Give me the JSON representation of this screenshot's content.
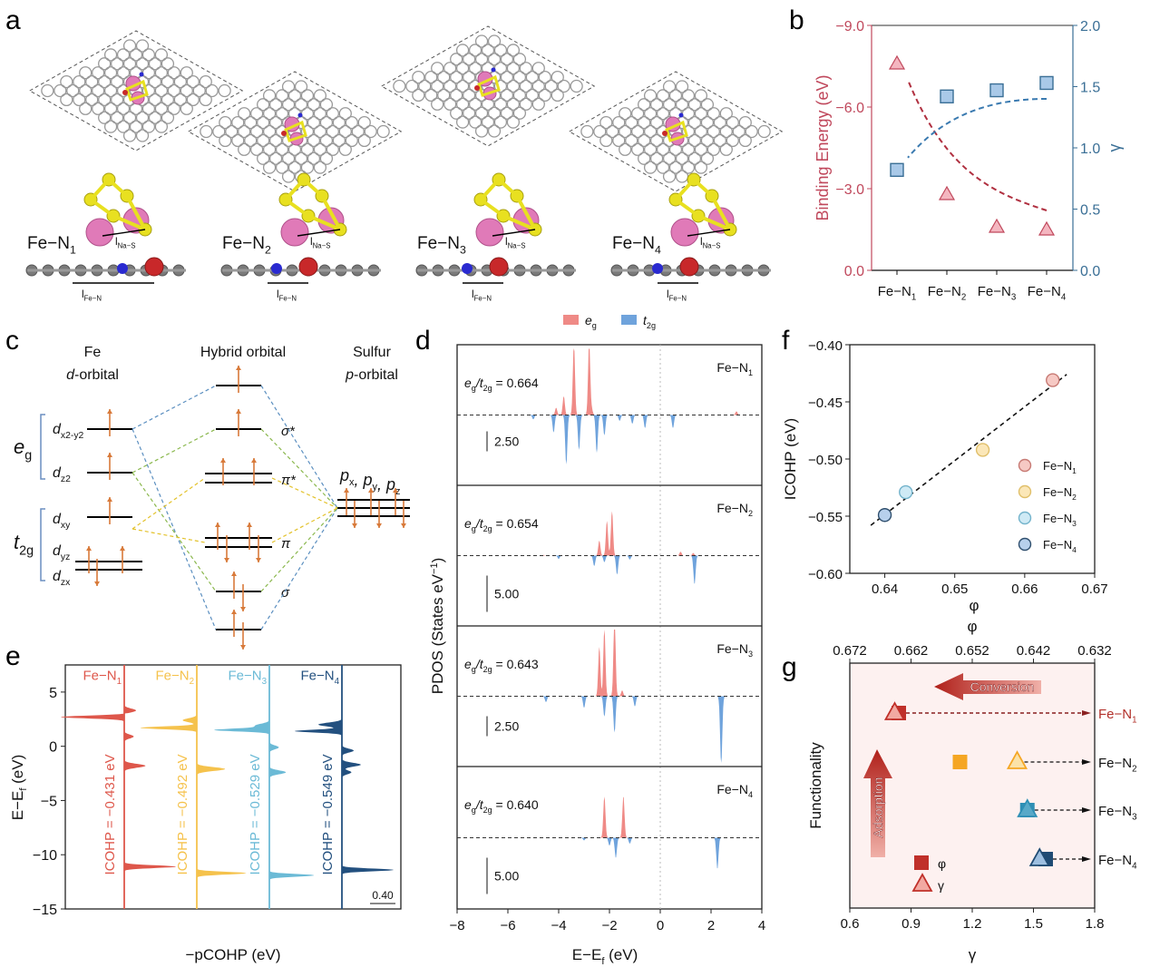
{
  "panels": {
    "a": {
      "label": "a",
      "structures": [
        {
          "name": "Fe−N",
          "sub": "1",
          "na_s": "l",
          "na_s_sub": "Na−S",
          "fe_n": "l",
          "fe_n_sub": "Fe−N"
        },
        {
          "name": "Fe−N",
          "sub": "2",
          "na_s": "l",
          "na_s_sub": "Na−S",
          "fe_n": "l",
          "fe_n_sub": "Fe−N"
        },
        {
          "name": "Fe−N",
          "sub": "3",
          "na_s": "l",
          "na_s_sub": "Na−S",
          "fe_n": "l",
          "fe_n_sub": "Fe−N"
        },
        {
          "name": "Fe−N",
          "sub": "4",
          "na_s": "l",
          "na_s_sub": "Na−S",
          "fe_n": "l",
          "fe_n_sub": "Fe−N"
        }
      ],
      "atom_colors": {
        "carbon": "#8c8c8c",
        "nitrogen": "#2a2ad0",
        "iron": "#c8282a",
        "sulfur": "#e8e020",
        "sodium": "#e07ab8"
      }
    },
    "c": {
      "label": "c",
      "left_header": [
        "Fe",
        "d-orbital"
      ],
      "middle_header": "Hybrid orbital",
      "right_header": [
        "Sulfur",
        "p-orbital"
      ],
      "eg": "e",
      "eg_sub": "g",
      "t2g": "t",
      "t2g_sub": "2g",
      "d_orbitals": [
        {
          "main": "d",
          "sub": "x2-y2"
        },
        {
          "main": "d",
          "sub": "z2"
        },
        {
          "main": "d",
          "sub": "xy"
        },
        {
          "main": "d",
          "sub": "yz"
        },
        {
          "main": "d",
          "sub": "zx"
        }
      ],
      "bond_labels": [
        "σ*",
        "π*",
        "π",
        "σ"
      ],
      "p_label": "p",
      "p_subs": [
        "x",
        "y",
        "z"
      ],
      "line_colors": {
        "blue": "#5b8fc0",
        "green": "#8bb84e",
        "yellow": "#e3c22b",
        "electron": "#d87a3a"
      }
    },
    "e": {
      "label": "e"
    },
    "d": {
      "label": "d"
    },
    "b": {
      "label": "b"
    },
    "f": {
      "label": "f"
    },
    "g": {
      "label": "g"
    }
  },
  "chart_data": [
    {
      "id": "b",
      "type": "scatter",
      "title": "",
      "categories": [
        "Fe−N1",
        "Fe−N2",
        "Fe−N3",
        "Fe−N4"
      ],
      "category_labels": [
        {
          "t": "Fe−N",
          "s": "1"
        },
        {
          "t": "Fe−N",
          "s": "2"
        },
        {
          "t": "Fe−N",
          "s": "3"
        },
        {
          "t": "Fe−N",
          "s": "4"
        }
      ],
      "ylabel_left": "Binding Energy (eV)",
      "ylabel_right": "γ",
      "ylim_left": [
        0.0,
        -9.0
      ],
      "ylim_right": [
        0.0,
        2.0
      ],
      "yticks_left": [
        "0.0",
        "−3.0",
        "−6.0",
        "−9.0"
      ],
      "yticks_right": [
        "0.0",
        "0.5",
        "1.0",
        "1.5",
        "2.0"
      ],
      "series": [
        {
          "name": "Binding Energy",
          "marker": "triangle",
          "axis": "left",
          "color": "#c0485c",
          "fill": "#f4b6c0",
          "values": [
            -7.6,
            -2.8,
            -1.6,
            -1.5
          ]
        },
        {
          "name": "γ",
          "marker": "square",
          "axis": "right",
          "color": "#3a6f96",
          "fill": "#a9c9e8",
          "values": [
            0.82,
            1.42,
            1.47,
            1.53
          ]
        }
      ],
      "trend_arrows": [
        {
          "color": "#b03040"
        },
        {
          "color": "#3a7ab0"
        }
      ]
    },
    {
      "id": "d",
      "type": "area",
      "xlabel": "E−E",
      "xlabel_sub": "f",
      "xlabel_unit": " (eV)",
      "ylabel": "PDOS (States eV",
      "ylabel_sup": "−1",
      "ylabel_end": ")",
      "xlim": [
        -8,
        4
      ],
      "xticks": [
        "−8",
        "−6",
        "−4",
        "−2",
        "0",
        "2",
        "4"
      ],
      "legend": [
        {
          "name": "e",
          "sub": "g",
          "color": "#ef8a86"
        },
        {
          "name": "t",
          "sub": "2g",
          "color": "#6fa3dc"
        }
      ],
      "subplots": [
        {
          "name": "Fe−N",
          "sub": "1",
          "ratio_label": "= 0.664",
          "ratio": 0.664,
          "scale": "2.50",
          "eg_peaks": [
            [
              -4.1,
              0.5
            ],
            [
              -3.8,
              1.3
            ],
            [
              -3.4,
              4.9
            ],
            [
              -2.8,
              5.0
            ],
            [
              -2.7,
              0.4
            ],
            [
              3.0,
              0.25
            ]
          ],
          "t2g_peaks": [
            [
              -5.0,
              0.3
            ],
            [
              -4.2,
              1.2
            ],
            [
              -3.7,
              3.4
            ],
            [
              -3.2,
              2.4
            ],
            [
              -2.5,
              2.6
            ],
            [
              -2.2,
              1.4
            ],
            [
              -1.6,
              0.4
            ],
            [
              -1.1,
              0.6
            ],
            [
              -0.6,
              0.9
            ],
            [
              0.5,
              0.9
            ]
          ]
        },
        {
          "name": "Fe−N",
          "sub": "2",
          "ratio_label": "= 0.654",
          "ratio": 0.654,
          "scale": "5.00",
          "eg_peaks": [
            [
              -4.6,
              0.1
            ],
            [
              -2.4,
              2.3
            ],
            [
              -2.1,
              5.3
            ],
            [
              -1.9,
              6.8
            ],
            [
              0.8,
              0.6
            ],
            [
              1.3,
              0.4
            ]
          ],
          "t2g_peaks": [
            [
              -4.0,
              0.5
            ],
            [
              -2.6,
              1.6
            ],
            [
              -2.2,
              1.0
            ],
            [
              -1.7,
              2.9
            ],
            [
              -1.2,
              0.6
            ],
            [
              1.35,
              4.4
            ]
          ]
        },
        {
          "name": "Fe−N",
          "sub": "3",
          "ratio_label": "= 0.643",
          "ratio": 0.643,
          "scale": "2.50",
          "eg_peaks": [
            [
              -2.4,
              3.4
            ],
            [
              -2.2,
              4.6
            ],
            [
              -1.8,
              5.6
            ],
            [
              -1.5,
              0.4
            ]
          ],
          "t2g_peaks": [
            [
              -4.5,
              0.4
            ],
            [
              -3.0,
              0.8
            ],
            [
              -2.2,
              1.4
            ],
            [
              -1.8,
              2.5
            ],
            [
              -1.0,
              0.7
            ],
            [
              2.4,
              4.7
            ]
          ]
        },
        {
          "name": "Fe−N",
          "sub": "4",
          "ratio_label": "= 0.640",
          "ratio": 0.64,
          "scale": "5.00",
          "eg_peaks": [
            [
              -2.2,
              6.3
            ],
            [
              -1.45,
              6.4
            ]
          ],
          "t2g_peaks": [
            [
              -3.0,
              0.4
            ],
            [
              -2.0,
              1.2
            ],
            [
              -1.75,
              3.1
            ],
            [
              -1.2,
              0.9
            ],
            [
              2.25,
              4.8
            ]
          ]
        }
      ]
    },
    {
      "id": "e",
      "type": "area",
      "xlabel": "−pCOHP (eV)",
      "ylabel": "E−E",
      "ylabel_sub": "f",
      "ylabel_unit": " (eV)",
      "ylim": [
        -15,
        7.5
      ],
      "yticks": [
        "5",
        "0",
        "−5",
        "−10",
        "−15"
      ],
      "ytick_values": [
        5,
        0,
        -5,
        -10,
        -15
      ],
      "scale_bar": "0.40",
      "series": [
        {
          "name": "Fe−N",
          "sub": "1",
          "icohp_label": "ICOHP = −0.431 eV",
          "icohp": -0.431,
          "color": "#de574b",
          "peaks": [
            [
              3.3,
              0.25
            ],
            [
              2.7,
              -1.35
            ],
            [
              0.9,
              0.2
            ],
            [
              -1.8,
              0.45
            ],
            [
              -11.1,
              1.1
            ]
          ]
        },
        {
          "name": "Fe−N",
          "sub": "2",
          "icohp_label": "ICOHP = −0.492 eV",
          "icohp": -0.492,
          "color": "#f5c24c",
          "peaks": [
            [
              2.4,
              -0.3
            ],
            [
              1.7,
              -1.2
            ],
            [
              -2.1,
              0.6
            ],
            [
              -11.7,
              1.05
            ]
          ]
        },
        {
          "name": "Fe−N",
          "sub": "3",
          "icohp_label": "ICOHP = −0.529 eV",
          "icohp": -0.529,
          "color": "#6bbad6",
          "peaks": [
            [
              1.9,
              -0.3
            ],
            [
              1.5,
              -1.15
            ],
            [
              -0.1,
              0.2
            ],
            [
              -2.4,
              0.35
            ],
            [
              -11.9,
              0.95
            ]
          ]
        },
        {
          "name": "Fe−N",
          "sub": "4",
          "icohp_label": "ICOHP = −0.549 eV",
          "icohp": -0.549,
          "color": "#23507f",
          "peaks": [
            [
              2.0,
              -0.5
            ],
            [
              1.4,
              -1.0
            ],
            [
              -0.4,
              0.25
            ],
            [
              -1.7,
              0.4
            ],
            [
              -2.4,
              0.2
            ],
            [
              -11.4,
              1.1
            ]
          ]
        }
      ]
    },
    {
      "id": "f",
      "type": "scatter",
      "xlabel": "φ",
      "ylabel": "ICOHP (eV)",
      "xlim": [
        0.635,
        0.67
      ],
      "ylim": [
        -0.6,
        -0.4
      ],
      "xticks": [
        "0.64",
        "0.65",
        "0.66",
        "0.67"
      ],
      "xtick_values": [
        0.64,
        0.65,
        0.66,
        0.67
      ],
      "yticks": [
        "−0.40",
        "−0.45",
        "−0.50",
        "−0.55",
        "−0.60"
      ],
      "ytick_values": [
        -0.4,
        -0.45,
        -0.5,
        -0.55,
        -0.6
      ],
      "points": [
        {
          "name": "Fe−N",
          "sub": "1",
          "x": 0.664,
          "y": -0.431,
          "fill": "#f6c9c4",
          "stroke": "#c77a74"
        },
        {
          "name": "Fe−N",
          "sub": "2",
          "x": 0.654,
          "y": -0.492,
          "fill": "#fbe7b8",
          "stroke": "#e0bf6a"
        },
        {
          "name": "Fe−N",
          "sub": "3",
          "x": 0.643,
          "y": -0.529,
          "fill": "#cfeaf5",
          "stroke": "#73b3cb"
        },
        {
          "name": "Fe−N",
          "sub": "4",
          "x": 0.64,
          "y": -0.549,
          "fill": "#b7d0ec",
          "stroke": "#2f4f6e"
        }
      ],
      "fit_line": {
        "x": [
          0.638,
          0.666
        ],
        "y": [
          -0.558,
          -0.426
        ]
      },
      "legend_position": "bottom-right"
    },
    {
      "id": "g",
      "type": "scatter",
      "xlabel": "γ",
      "xlabel_top": "φ",
      "ylabel": "Functionality",
      "xlim": [
        0.6,
        1.8
      ],
      "xticks": [
        "0.6",
        "0.9",
        "1.2",
        "1.5",
        "1.8"
      ],
      "xtick_values": [
        0.6,
        0.9,
        1.2,
        1.5,
        1.8
      ],
      "xlim_top": [
        0.672,
        0.632
      ],
      "xticks_top": [
        "0.672",
        "0.662",
        "0.652",
        "0.642",
        "0.632"
      ],
      "xtick_top_values": [
        0.672,
        0.662,
        0.652,
        0.642,
        0.632
      ],
      "rows": [
        {
          "name": "Fe−N",
          "sub": "1",
          "phi": 0.664,
          "gamma": 0.82,
          "color": "#c0302a",
          "tri_fill": "#f2a9a2",
          "label_color": "#b2302a"
        },
        {
          "name": "Fe−N",
          "sub": "2",
          "phi": 0.654,
          "gamma": 1.42,
          "color": "#f5a623",
          "tri_fill": "#fbe2a8",
          "label_color": "#111111"
        },
        {
          "name": "Fe−N",
          "sub": "3",
          "phi": 0.643,
          "gamma": 1.47,
          "color": "#2e8fb5",
          "tri_fill": "#58a9c8",
          "label_color": "#111111"
        },
        {
          "name": "Fe−N",
          "sub": "4",
          "phi": 0.64,
          "gamma": 1.53,
          "color": "#1f4b73",
          "tri_fill": "#9dbfe0",
          "label_color": "#111111"
        }
      ],
      "conversion_label": "Conversion",
      "adsorption_label": "Adsorption",
      "legend": [
        {
          "marker": "square",
          "label": "φ"
        },
        {
          "marker": "triangle",
          "label": "γ"
        }
      ],
      "background": "#fdf1f0"
    }
  ]
}
